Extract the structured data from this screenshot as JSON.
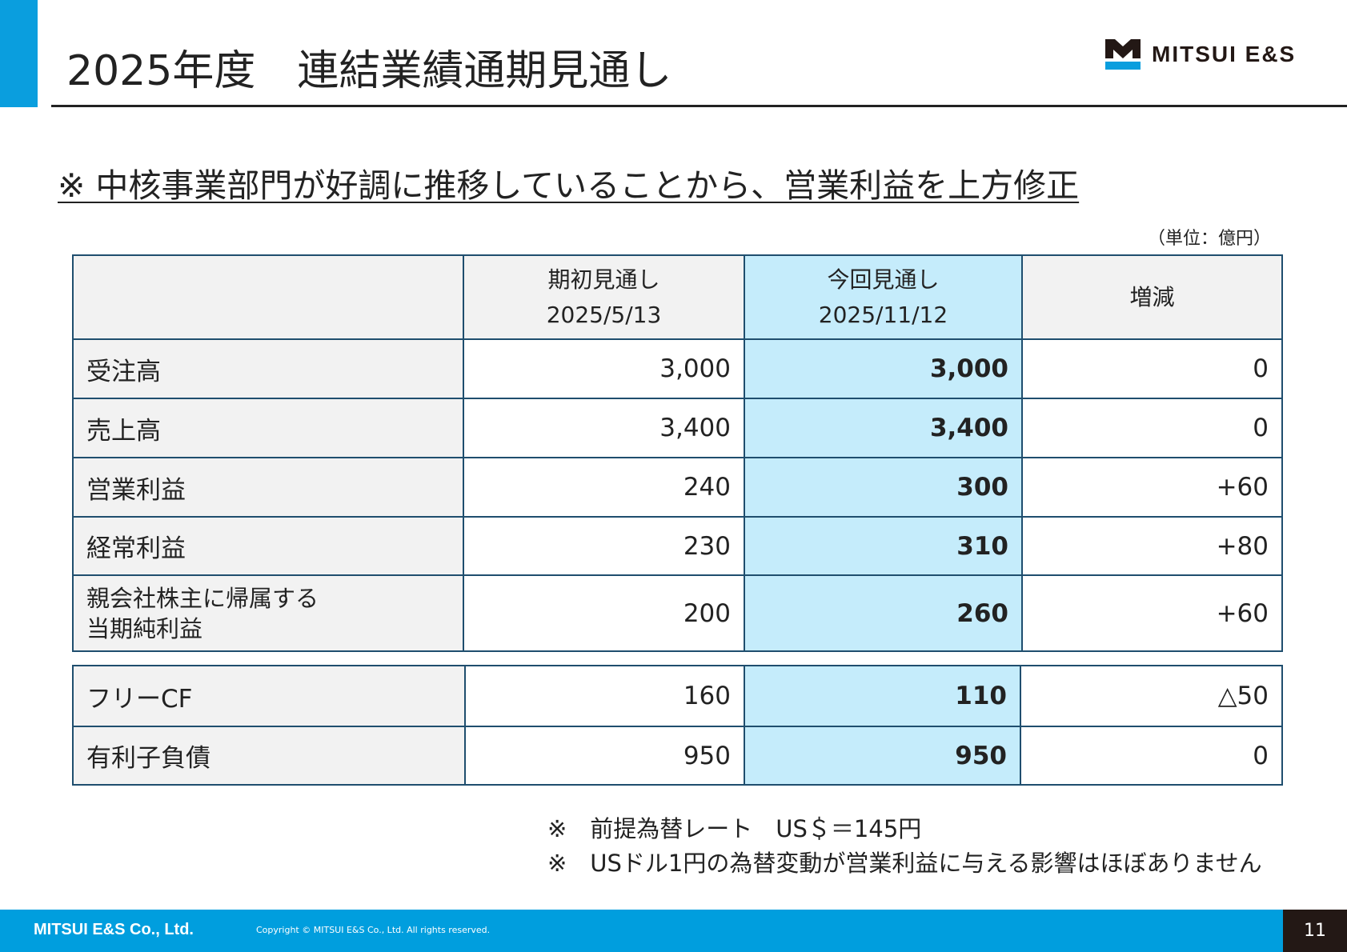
{
  "header": {
    "title": "2025年度　連結業績通期見通し",
    "logo_text": "MITSUI E&S",
    "accent": "#0a9ede"
  },
  "subtitle": "※ 中核事業部門が好調に推移していることから、営業利益を上方修正",
  "unit": "（単位：億円）",
  "table": {
    "columns": [
      {
        "label": "期初見通し",
        "date": "2025/5/13"
      },
      {
        "label": "今回見通し",
        "date": "2025/11/12"
      },
      {
        "label": "増減",
        "date": ""
      }
    ],
    "rows": [
      {
        "label": "受注高",
        "initial": "3,000",
        "current": "3,000",
        "change": "0"
      },
      {
        "label": "売上高",
        "initial": "3,400",
        "current": "3,400",
        "change": "0"
      },
      {
        "label": "営業利益",
        "initial": "240",
        "current": "300",
        "change": "+60"
      },
      {
        "label": "経常利益",
        "initial": "230",
        "current": "310",
        "change": "+80"
      },
      {
        "label": "親会社株主に帰属する\n当期純利益",
        "initial": "200",
        "current": "260",
        "change": "+60"
      }
    ],
    "rows2": [
      {
        "label": "フリーCF",
        "initial": "160",
        "current": "110",
        "change": "△50"
      },
      {
        "label": "有利子負債",
        "initial": "950",
        "current": "950",
        "change": "0"
      }
    ]
  },
  "notes": [
    "※　前提為替レート　US＄＝145円",
    "※　USドル1円の為替変動が営業利益に与える影響はほぼありません"
  ],
  "footer": {
    "company": "MITSUI E&S Co., Ltd.",
    "copyright": "Copyright © MITSUI E&S Co., Ltd. All rights reserved.",
    "page": "11"
  }
}
